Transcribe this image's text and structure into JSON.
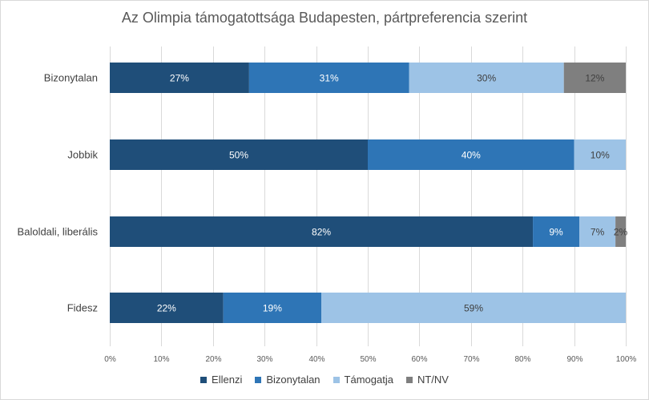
{
  "chart_data": {
    "type": "bar",
    "orientation": "horizontal",
    "stacked": true,
    "title": "Az Olimpia támogatottsága Budapesten, pártpreferencia szerint",
    "categories": [
      "Bizonytalan",
      "Jobbik",
      "Baloldali, liberális",
      "Fidesz"
    ],
    "series": [
      {
        "name": "Ellenzi",
        "color": "#1f4e79",
        "label_color": "#ffffff",
        "values": [
          27,
          50,
          82,
          22
        ],
        "labels": [
          "27%",
          "50%",
          "82%",
          "22%"
        ]
      },
      {
        "name": "Bizonytalan",
        "color": "#2e75b6",
        "label_color": "#ffffff",
        "values": [
          31,
          40,
          9,
          19
        ],
        "labels": [
          "31%",
          "40%",
          "9%",
          "19%"
        ]
      },
      {
        "name": "Támogatja",
        "color": "#9dc3e6",
        "label_color": "#404040",
        "values": [
          30,
          10,
          7,
          59
        ],
        "labels": [
          "30%",
          "10%",
          "7%",
          "59%"
        ]
      },
      {
        "name": "NT/NV",
        "color": "#7f7f7f",
        "label_color": "#404040",
        "values": [
          12,
          0,
          2,
          0
        ],
        "labels": [
          "12%",
          "",
          "2%",
          ""
        ]
      }
    ],
    "xlim": [
      0,
      100
    ],
    "x_ticks": [
      "0%",
      "10%",
      "20%",
      "30%",
      "40%",
      "50%",
      "60%",
      "70%",
      "80%",
      "90%",
      "100%"
    ],
    "grid": true,
    "legend_position": "bottom"
  }
}
